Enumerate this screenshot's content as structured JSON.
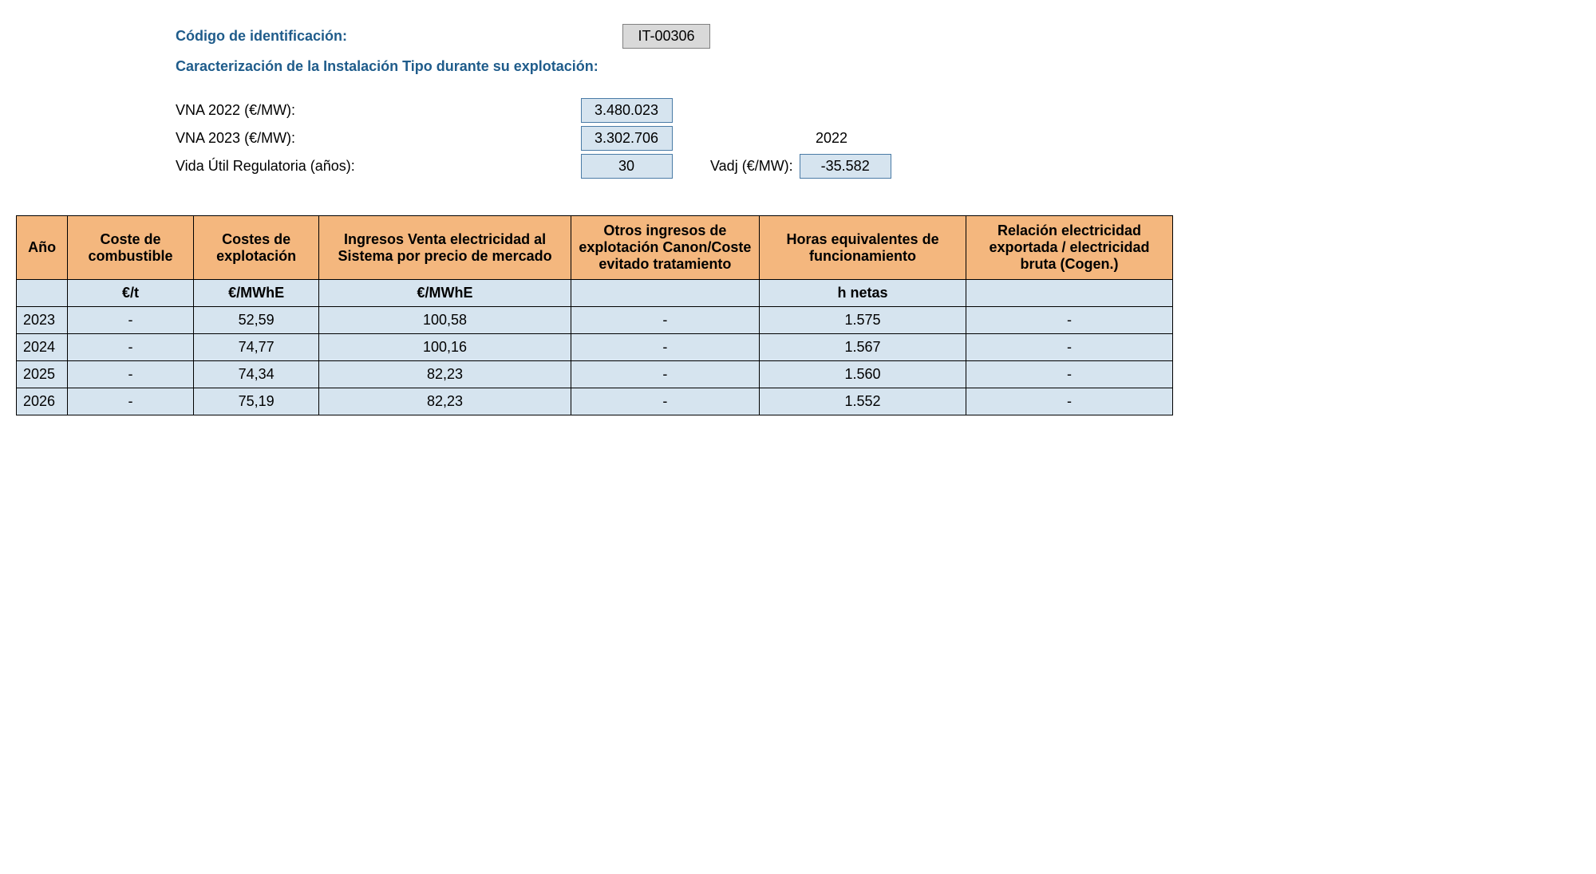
{
  "header": {
    "codigo_label": "Código de identificación:",
    "codigo_value": "IT-00306",
    "section_title": "Caracterización de la Instalación Tipo durante su explotación:"
  },
  "params": {
    "vna2022_label": "VNA 2022 (€/MW):",
    "vna2022_value": "3.480.023",
    "vna2023_label": "VNA 2023 (€/MW):",
    "vna2023_value": "3.302.706",
    "year_ref": "2022",
    "vida_util_label": "Vida Útil Regulatoria (años):",
    "vida_util_value": "30",
    "vadj_label": "Vadj (€/MW):",
    "vadj_value": "-35.582"
  },
  "table": {
    "columns": [
      "Año",
      "Coste de combustible",
      "Costes de explotación",
      "Ingresos Venta electricidad al Sistema por precio de mercado",
      "Otros ingresos de explotación Canon/Coste evitado tratamiento",
      "Horas equivalentes de funcionamiento",
      "Relación electricidad exportada / electricidad bruta\n(Cogen.)"
    ],
    "units": [
      "",
      "€/t",
      "€/MWhE",
      "€/MWhE",
      "",
      "h netas",
      ""
    ],
    "rows": [
      [
        "2023",
        "-",
        "52,59",
        "100,58",
        "-",
        "1.575",
        "-"
      ],
      [
        "2024",
        "-",
        "74,77",
        "100,16",
        "-",
        "1.567",
        "-"
      ],
      [
        "2025",
        "-",
        "74,34",
        "82,23",
        "-",
        "1.560",
        "-"
      ],
      [
        "2026",
        "-",
        "75,19",
        "82,23",
        "-",
        "1.552",
        "-"
      ]
    ],
    "header_bg": "#f4b77e",
    "cell_bg": "#d6e4ef",
    "border_color": "#000000"
  },
  "colors": {
    "blue_text": "#1f5c8b",
    "gray_box_bg": "#d9d9d9",
    "blue_box_bg": "#d6e4ef",
    "blue_box_border": "#4a7ba6"
  }
}
